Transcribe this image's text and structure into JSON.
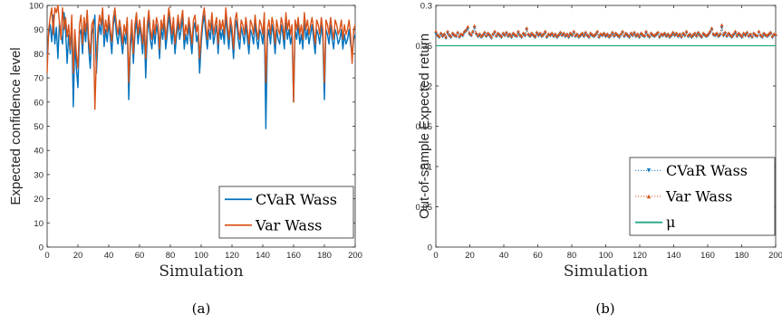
{
  "colors": {
    "cvar": "#0072BD",
    "var": "#D95319",
    "mu": "#22A884",
    "axis": "#262626"
  },
  "chart_data": [
    {
      "id": "a",
      "type": "line",
      "caption": "(a)",
      "xlabel": "Simulation",
      "ylabel": "Expected confidence level",
      "xlim": [
        0,
        200
      ],
      "ylim": [
        0,
        100
      ],
      "xticks": [
        0,
        20,
        40,
        60,
        80,
        100,
        120,
        140,
        160,
        180,
        200
      ],
      "yticks": [
        0,
        10,
        20,
        30,
        40,
        50,
        60,
        70,
        80,
        90,
        100
      ],
      "legend_position": "bottom-right",
      "series": [
        {
          "name": "CVaR Wass",
          "color": "#0072BD",
          "values": [
            80,
            88,
            92,
            85,
            96,
            84,
            91,
            78,
            93,
            88,
            84,
            97,
            90,
            76,
            88,
            80,
            92,
            58,
            85,
            74,
            66,
            88,
            90,
            80,
            92,
            85,
            95,
            82,
            74,
            88,
            91,
            96,
            72,
            86,
            92,
            88,
            98,
            83,
            90,
            85,
            93,
            87,
            80,
            92,
            96,
            88,
            84,
            91,
            86,
            80,
            88,
            84,
            92,
            61,
            82,
            90,
            76,
            88,
            94,
            84,
            91,
            87,
            80,
            92,
            70,
            88,
            95,
            86,
            82,
            90,
            84,
            92,
            88,
            78,
            91,
            86,
            93,
            82,
            88,
            96,
            90,
            84,
            92,
            80,
            87,
            93,
            86,
            90,
            95,
            82,
            88,
            84,
            92,
            86,
            80,
            90,
            93,
            85,
            88,
            72,
            84,
            92,
            96,
            88,
            82,
            90,
            86,
            94,
            84,
            88,
            92,
            80,
            91,
            86,
            90,
            84,
            96,
            88,
            82,
            92,
            87,
            78,
            90,
            94,
            86,
            82,
            91,
            88,
            84,
            92,
            86,
            80,
            90,
            88,
            84,
            93,
            86,
            82,
            90,
            88,
            84,
            94,
            49,
            86,
            90,
            84,
            92,
            88,
            80,
            90,
            86,
            84,
            92,
            88,
            82,
            94,
            86,
            90,
            84,
            88,
            60,
            90,
            86,
            92,
            84,
            88,
            82,
            94,
            86,
            90,
            84,
            88,
            92,
            86,
            80,
            90,
            88,
            84,
            92,
            86,
            61,
            90,
            88,
            84,
            92,
            86,
            82,
            90,
            88,
            84,
            86,
            90,
            82,
            88,
            84,
            86,
            90,
            84,
            80,
            86,
            88
          ]
        },
        {
          "name": "Var Wass",
          "color": "#D95319",
          "values": [
            72,
            90,
            95,
            99,
            88,
            99,
            97,
            100,
            93,
            86,
            99,
            90,
            95,
            87,
            92,
            82,
            96,
            72,
            90,
            80,
            74,
            92,
            96,
            84,
            95,
            89,
            98,
            86,
            80,
            92,
            94,
            57,
            78,
            90,
            96,
            92,
            99,
            88,
            94,
            89,
            96,
            90,
            85,
            95,
            99,
            92,
            88,
            94,
            90,
            84,
            92,
            88,
            95,
            68,
            86,
            94,
            80,
            92,
            97,
            88,
            94,
            90,
            84,
            95,
            78,
            92,
            98,
            90,
            86,
            94,
            88,
            95,
            92,
            82,
            94,
            90,
            96,
            86,
            92,
            99,
            94,
            88,
            95,
            84,
            90,
            96,
            90,
            94,
            98,
            86,
            92,
            88,
            95,
            90,
            84,
            94,
            96,
            89,
            92,
            78,
            88,
            95,
            99,
            92,
            86,
            94,
            90,
            97,
            88,
            92,
            95,
            84,
            94,
            90,
            94,
            88,
            99,
            92,
            86,
            95,
            91,
            82,
            94,
            97,
            90,
            86,
            94,
            92,
            88,
            95,
            90,
            84,
            94,
            92,
            88,
            96,
            90,
            86,
            94,
            92,
            88,
            97,
            68,
            90,
            94,
            88,
            95,
            92,
            84,
            94,
            90,
            88,
            95,
            92,
            86,
            97,
            90,
            94,
            88,
            92,
            60,
            94,
            90,
            95,
            88,
            92,
            86,
            97,
            90,
            94,
            88,
            92,
            95,
            90,
            84,
            94,
            92,
            88,
            95,
            90,
            68,
            94,
            92,
            88,
            95,
            90,
            86,
            94,
            92,
            88,
            90,
            94,
            86,
            92,
            88,
            90,
            94,
            88,
            76,
            90,
            92
          ]
        }
      ]
    },
    {
      "id": "b",
      "type": "line",
      "caption": "(b)",
      "xlabel": "Simulation",
      "ylabel": "Out-of-sample Expected return",
      "xlim": [
        0,
        200
      ],
      "ylim": [
        0,
        0.3
      ],
      "xticks": [
        0,
        20,
        40,
        60,
        80,
        100,
        120,
        140,
        160,
        180,
        200
      ],
      "yticks": [
        0,
        0.05,
        0.1,
        0.15,
        0.2,
        0.25,
        0.3
      ],
      "legend_position": "bottom-right",
      "series": [
        {
          "name": "CVaR Wass",
          "color": "#0072BD",
          "style": "dotted",
          "marker": "triangle-down",
          "values": [
            0.265,
            0.262,
            0.26,
            0.264,
            0.261,
            0.263,
            0.259,
            0.266,
            0.262,
            0.26,
            0.264,
            0.262,
            0.261,
            0.265,
            0.26,
            0.263,
            0.262,
            0.266,
            0.268,
            0.271,
            0.264,
            0.262,
            0.266,
            0.272,
            0.264,
            0.261,
            0.263,
            0.26,
            0.262,
            0.265,
            0.261,
            0.264,
            0.262,
            0.259,
            0.263,
            0.266,
            0.261,
            0.264,
            0.262,
            0.26,
            0.264,
            0.262,
            0.265,
            0.261,
            0.263,
            0.26,
            0.264,
            0.262,
            0.261,
            0.266,
            0.262,
            0.26,
            0.264,
            0.262,
            0.27,
            0.263,
            0.261,
            0.264,
            0.262,
            0.26,
            0.265,
            0.262,
            0.264,
            0.261,
            0.263,
            0.266,
            0.26,
            0.263,
            0.262,
            0.264,
            0.261,
            0.263,
            0.26,
            0.262,
            0.265,
            0.262,
            0.264,
            0.261,
            0.263,
            0.26,
            0.264,
            0.262,
            0.266,
            0.261,
            0.263,
            0.26,
            0.262,
            0.264,
            0.261,
            0.265,
            0.262,
            0.26,
            0.264,
            0.262,
            0.261,
            0.263,
            0.266,
            0.26,
            0.263,
            0.262,
            0.264,
            0.261,
            0.263,
            0.26,
            0.262,
            0.265,
            0.261,
            0.264,
            0.262,
            0.26,
            0.263,
            0.266,
            0.261,
            0.264,
            0.262,
            0.26,
            0.264,
            0.262,
            0.265,
            0.261,
            0.263,
            0.26,
            0.264,
            0.262,
            0.261,
            0.266,
            0.262,
            0.26,
            0.264,
            0.262,
            0.261,
            0.263,
            0.265,
            0.26,
            0.263,
            0.262,
            0.264,
            0.261,
            0.263,
            0.26,
            0.262,
            0.265,
            0.262,
            0.264,
            0.261,
            0.263,
            0.26,
            0.264,
            0.262,
            0.266,
            0.261,
            0.263,
            0.26,
            0.262,
            0.264,
            0.261,
            0.265,
            0.262,
            0.26,
            0.264,
            0.262,
            0.261,
            0.263,
            0.266,
            0.27,
            0.263,
            0.262,
            0.264,
            0.261,
            0.263,
            0.272,
            0.262,
            0.265,
            0.261,
            0.264,
            0.262,
            0.26,
            0.263,
            0.266,
            0.261,
            0.264,
            0.262,
            0.26,
            0.264,
            0.262,
            0.265,
            0.261,
            0.263,
            0.26,
            0.264,
            0.262,
            0.261,
            0.266,
            0.262,
            0.26,
            0.264,
            0.262,
            0.261,
            0.263,
            0.265,
            0.26,
            0.263,
            0.262
          ]
        },
        {
          "name": "Var Wass",
          "color": "#D95319",
          "style": "dotted",
          "marker": "triangle-up",
          "values": [
            0.268,
            0.264,
            0.262,
            0.266,
            0.263,
            0.265,
            0.261,
            0.268,
            0.264,
            0.262,
            0.266,
            0.264,
            0.263,
            0.267,
            0.262,
            0.265,
            0.264,
            0.268,
            0.27,
            0.274,
            0.266,
            0.264,
            0.268,
            0.275,
            0.266,
            0.263,
            0.265,
            0.262,
            0.264,
            0.267,
            0.263,
            0.266,
            0.264,
            0.261,
            0.265,
            0.268,
            0.263,
            0.266,
            0.264,
            0.262,
            0.266,
            0.264,
            0.267,
            0.263,
            0.265,
            0.262,
            0.266,
            0.264,
            0.263,
            0.268,
            0.264,
            0.262,
            0.266,
            0.264,
            0.272,
            0.265,
            0.263,
            0.266,
            0.264,
            0.262,
            0.267,
            0.264,
            0.266,
            0.263,
            0.265,
            0.268,
            0.262,
            0.265,
            0.264,
            0.266,
            0.263,
            0.265,
            0.262,
            0.264,
            0.267,
            0.264,
            0.266,
            0.263,
            0.265,
            0.262,
            0.266,
            0.264,
            0.268,
            0.263,
            0.265,
            0.262,
            0.264,
            0.266,
            0.263,
            0.267,
            0.264,
            0.262,
            0.266,
            0.264,
            0.263,
            0.265,
            0.268,
            0.262,
            0.265,
            0.264,
            0.266,
            0.263,
            0.265,
            0.262,
            0.264,
            0.267,
            0.263,
            0.266,
            0.264,
            0.262,
            0.265,
            0.268,
            0.263,
            0.266,
            0.264,
            0.262,
            0.266,
            0.264,
            0.267,
            0.263,
            0.265,
            0.262,
            0.266,
            0.264,
            0.263,
            0.268,
            0.264,
            0.262,
            0.266,
            0.264,
            0.263,
            0.265,
            0.267,
            0.262,
            0.265,
            0.264,
            0.266,
            0.263,
            0.265,
            0.262,
            0.264,
            0.267,
            0.264,
            0.266,
            0.263,
            0.265,
            0.262,
            0.266,
            0.264,
            0.268,
            0.263,
            0.265,
            0.262,
            0.264,
            0.266,
            0.263,
            0.267,
            0.264,
            0.262,
            0.266,
            0.264,
            0.263,
            0.265,
            0.268,
            0.272,
            0.265,
            0.264,
            0.266,
            0.263,
            0.265,
            0.276,
            0.264,
            0.267,
            0.263,
            0.266,
            0.264,
            0.262,
            0.265,
            0.268,
            0.263,
            0.266,
            0.264,
            0.262,
            0.266,
            0.264,
            0.267,
            0.263,
            0.265,
            0.262,
            0.266,
            0.264,
            0.263,
            0.268,
            0.264,
            0.262,
            0.266,
            0.264,
            0.263,
            0.265,
            0.267,
            0.262,
            0.265,
            0.264
          ]
        },
        {
          "name": "μ",
          "color": "#22A884",
          "style": "solid",
          "constant": 0.25
        }
      ]
    }
  ]
}
